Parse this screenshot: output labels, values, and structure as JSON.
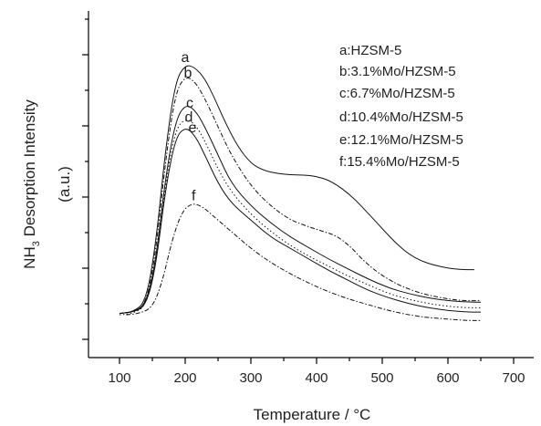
{
  "chart_data": {
    "type": "line",
    "title": "",
    "xlabel": "Temperature / °C",
    "ylabel_main": "NH",
    "ylabel_sub": "3",
    "ylabel_rest": " Desorption Intensity",
    "ylabel_unit": "(a.u.)",
    "xlim": [
      50,
      740
    ],
    "ylim": [
      0,
      1
    ],
    "x_ticks": [
      100,
      200,
      300,
      400,
      500,
      600,
      700
    ],
    "x_tick_labels": [
      "100",
      "200",
      "300",
      "400",
      "500",
      "600",
      "700"
    ],
    "y_tick_labels_shown": false,
    "grid": false,
    "legend_position": "top-right",
    "legend": [
      "a:HZSM-5",
      "b:3.1%Mo/HZSM-5",
      "c:6.7%Mo/HZSM-5",
      "d:10.4%Mo/HZSM-5",
      "e:12.1%Mo/HZSM-5",
      "f:15.4%Mo/HZSM-5"
    ],
    "series": [
      {
        "name": "a",
        "style": "solid",
        "x": [
          100,
          120,
          140,
          155,
          170,
          185,
          200,
          215,
          230,
          245,
          260,
          280,
          300,
          320,
          340,
          360,
          380,
          400,
          420,
          440,
          460,
          480,
          500,
          520,
          540,
          560,
          580,
          600,
          620,
          640
        ],
        "y": [
          0.04,
          0.045,
          0.08,
          0.28,
          0.62,
          0.86,
          0.92,
          0.91,
          0.87,
          0.8,
          0.72,
          0.63,
          0.57,
          0.545,
          0.535,
          0.53,
          0.53,
          0.525,
          0.51,
          0.48,
          0.44,
          0.39,
          0.34,
          0.29,
          0.25,
          0.225,
          0.21,
          0.2,
          0.195,
          0.195
        ]
      },
      {
        "name": "b",
        "style": "dash-dot",
        "x": [
          100,
          120,
          140,
          155,
          170,
          185,
          200,
          215,
          230,
          250,
          270,
          300,
          330,
          360,
          390,
          410,
          430,
          450,
          470,
          490,
          510,
          530,
          560,
          590,
          620,
          650
        ],
        "y": [
          0.04,
          0.045,
          0.07,
          0.25,
          0.58,
          0.82,
          0.88,
          0.86,
          0.8,
          0.7,
          0.6,
          0.49,
          0.42,
          0.37,
          0.345,
          0.33,
          0.315,
          0.28,
          0.23,
          0.19,
          0.16,
          0.135,
          0.11,
          0.095,
          0.085,
          0.085
        ]
      },
      {
        "name": "c",
        "style": "solid",
        "x": [
          100,
          120,
          140,
          155,
          170,
          185,
          200,
          215,
          230,
          250,
          270,
          300,
          330,
          360,
          390,
          420,
          450,
          480,
          510,
          540,
          570,
          600,
          630,
          650
        ],
        "y": [
          0.04,
          0.045,
          0.07,
          0.22,
          0.52,
          0.72,
          0.78,
          0.76,
          0.7,
          0.6,
          0.5,
          0.42,
          0.36,
          0.31,
          0.27,
          0.23,
          0.195,
          0.16,
          0.13,
          0.11,
          0.095,
          0.085,
          0.08,
          0.08
        ]
      },
      {
        "name": "d",
        "style": "dotted",
        "x": [
          100,
          120,
          140,
          155,
          170,
          185,
          200,
          215,
          230,
          250,
          270,
          300,
          330,
          360,
          390,
          420,
          450,
          480,
          510,
          540,
          570,
          600,
          630,
          650
        ],
        "y": [
          0.035,
          0.04,
          0.065,
          0.21,
          0.5,
          0.69,
          0.73,
          0.71,
          0.65,
          0.55,
          0.47,
          0.39,
          0.33,
          0.28,
          0.24,
          0.205,
          0.17,
          0.14,
          0.11,
          0.09,
          0.075,
          0.065,
          0.06,
          0.06
        ]
      },
      {
        "name": "e",
        "style": "solid",
        "x": [
          100,
          120,
          140,
          155,
          170,
          185,
          200,
          215,
          230,
          250,
          270,
          300,
          330,
          360,
          390,
          420,
          450,
          480,
          510,
          540,
          570,
          600,
          630,
          650
        ],
        "y": [
          0.04,
          0.045,
          0.065,
          0.2,
          0.48,
          0.66,
          0.7,
          0.67,
          0.6,
          0.5,
          0.43,
          0.37,
          0.31,
          0.27,
          0.23,
          0.19,
          0.155,
          0.12,
          0.095,
          0.075,
          0.06,
          0.05,
          0.045,
          0.045
        ]
      },
      {
        "name": "f",
        "style": "dash-dot",
        "x": [
          110,
          130,
          150,
          165,
          180,
          195,
          210,
          225,
          240,
          260,
          280,
          300,
          330,
          360,
          390,
          420,
          450,
          480,
          510,
          540,
          570,
          600,
          630,
          650
        ],
        "y": [
          0.035,
          0.04,
          0.06,
          0.15,
          0.3,
          0.4,
          0.43,
          0.42,
          0.39,
          0.35,
          0.31,
          0.27,
          0.22,
          0.18,
          0.145,
          0.115,
          0.09,
          0.07,
          0.05,
          0.035,
          0.025,
          0.02,
          0.015,
          0.015
        ]
      }
    ],
    "curve_labels": [
      {
        "text": "a",
        "series": "a"
      },
      {
        "text": "b",
        "series": "b"
      },
      {
        "text": "c",
        "series": "c"
      },
      {
        "text": "d",
        "series": "d"
      },
      {
        "text": "e",
        "series": "e"
      },
      {
        "text": "f",
        "series": "f"
      }
    ]
  }
}
